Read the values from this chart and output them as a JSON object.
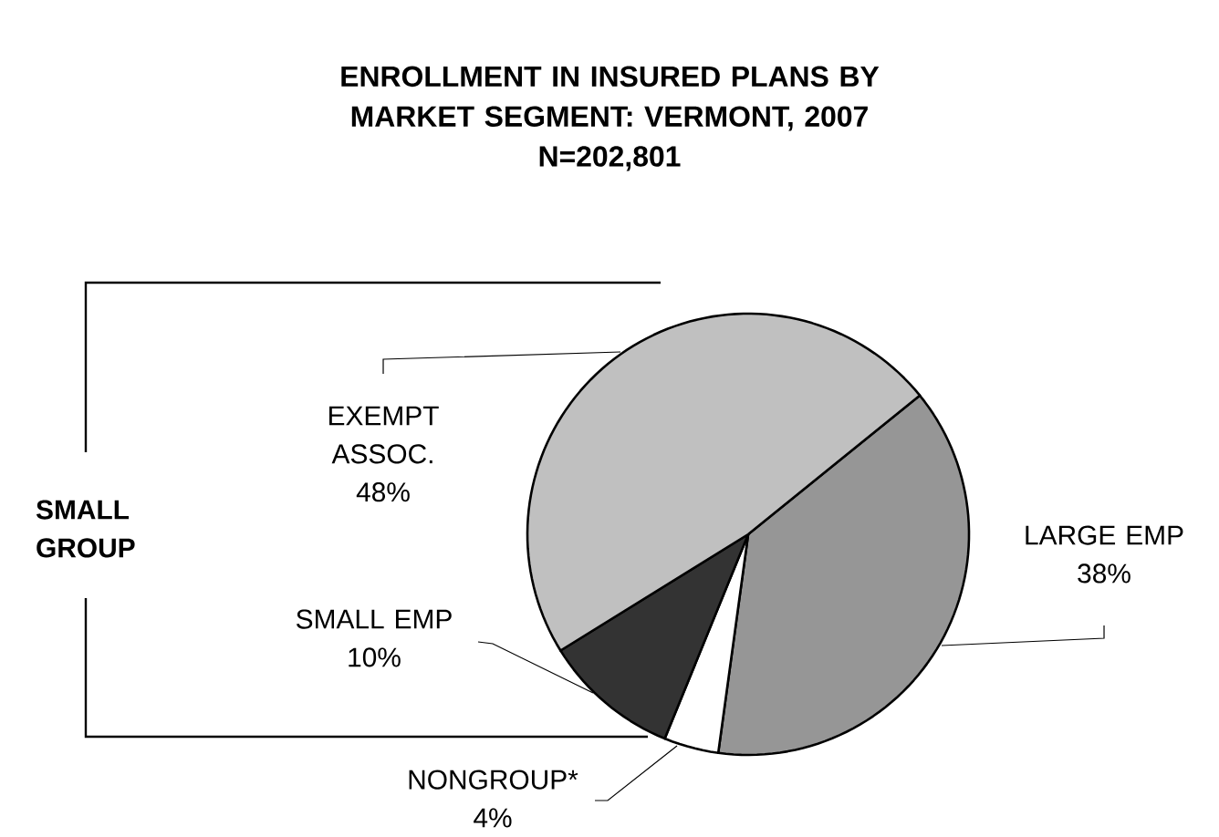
{
  "chart_data": {
    "type": "pie",
    "title": "ENROLLMENT IN INSURED PLANS BY MARKET SEGMENT: VERMONT, 2007",
    "subtitle": "N=202,801",
    "categories": [
      "LARGE EMP",
      "NONGROUP*",
      "SMALL EMP",
      "EXEMPT ASSOC."
    ],
    "values": [
      38,
      4,
      10,
      48
    ],
    "value_labels": [
      "38%",
      "4%",
      "10%",
      "48%"
    ],
    "colors": [
      "#969696",
      "#ffffff",
      "#333333",
      "#c0c0c0"
    ],
    "annotations": [
      "SMALL GROUP"
    ]
  }
}
